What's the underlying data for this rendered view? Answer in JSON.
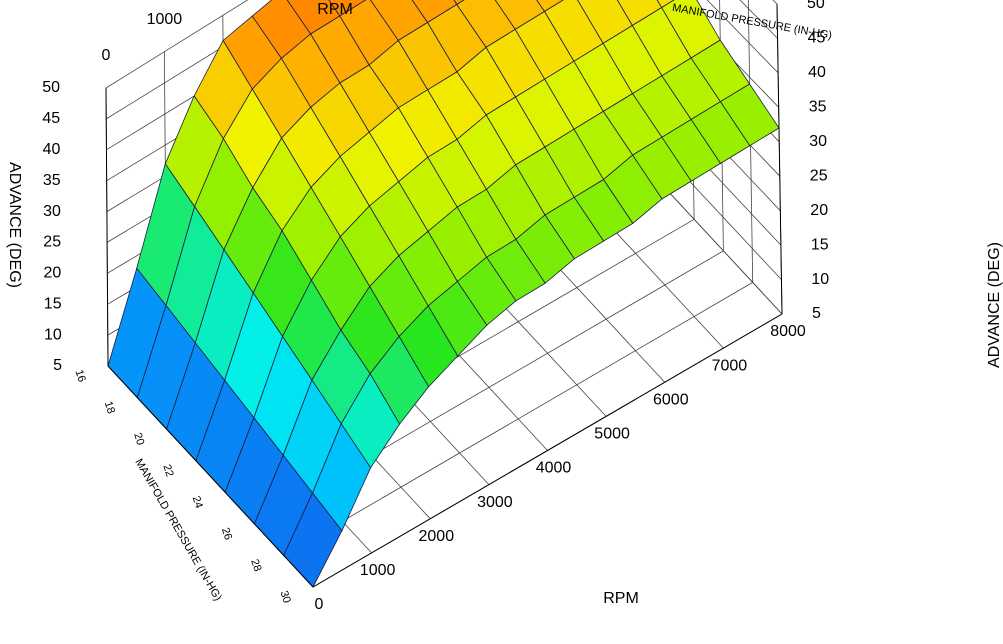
{
  "chart_data": {
    "type": "surface",
    "title": "",
    "x": {
      "label": "RPM",
      "range": [
        0,
        8000
      ],
      "ticks": [
        "0",
        "1000",
        "2000",
        "3000",
        "4000",
        "5000",
        "6000",
        "7000",
        "8000"
      ],
      "values": [
        0,
        500,
        1000,
        1500,
        2000,
        2500,
        3000,
        3500,
        4000,
        4500,
        5000,
        5500,
        6000,
        6500,
        7000,
        7500,
        8000
      ]
    },
    "y": {
      "label": "MANIFOLD PRESSURE (IN-HG)",
      "range": [
        16,
        30
      ],
      "ticks": [
        "16",
        "18",
        "20",
        "22",
        "24",
        "26",
        "28",
        "30"
      ],
      "values": [
        16,
        18,
        20,
        22,
        24,
        26,
        28,
        30
      ]
    },
    "z": {
      "label": "ADVANCE (DEG)",
      "range": [
        5,
        50
      ],
      "ticks": [
        "5",
        "10",
        "15",
        "20",
        "25",
        "30",
        "35",
        "40",
        "45",
        "50"
      ]
    },
    "advance_by_pressure": [
      [
        5,
        18,
        32,
        40,
        46,
        47,
        48,
        48,
        48,
        48,
        49,
        49,
        49,
        49,
        49,
        49,
        49
      ],
      [
        5,
        17,
        30,
        38,
        43,
        45,
        46,
        46,
        46,
        46,
        47,
        47,
        47,
        47,
        47,
        47,
        47
      ],
      [
        5,
        16,
        28,
        35,
        40,
        42,
        43,
        43,
        44,
        44,
        44,
        44,
        44,
        44,
        44,
        44,
        44
      ],
      [
        5,
        15,
        26,
        33,
        37,
        39,
        40,
        41,
        41,
        41,
        42,
        42,
        42,
        42,
        42,
        42,
        42
      ],
      [
        5,
        14,
        24,
        30,
        34,
        36,
        37,
        38,
        38,
        39,
        39,
        39,
        39,
        39,
        39,
        39,
        39
      ],
      [
        5,
        13,
        22,
        27,
        31,
        33,
        34,
        35,
        35,
        36,
        36,
        36,
        36,
        36,
        36,
        36,
        36
      ],
      [
        5,
        12,
        20,
        25,
        28,
        30,
        31,
        32,
        32,
        33,
        33,
        33,
        34,
        34,
        34,
        34,
        34
      ],
      [
        5,
        11,
        18,
        22,
        25,
        27,
        29,
        30,
        30,
        31,
        31,
        31,
        32,
        32,
        32,
        32,
        32
      ]
    ],
    "colorscale": "jet",
    "grid": true
  }
}
